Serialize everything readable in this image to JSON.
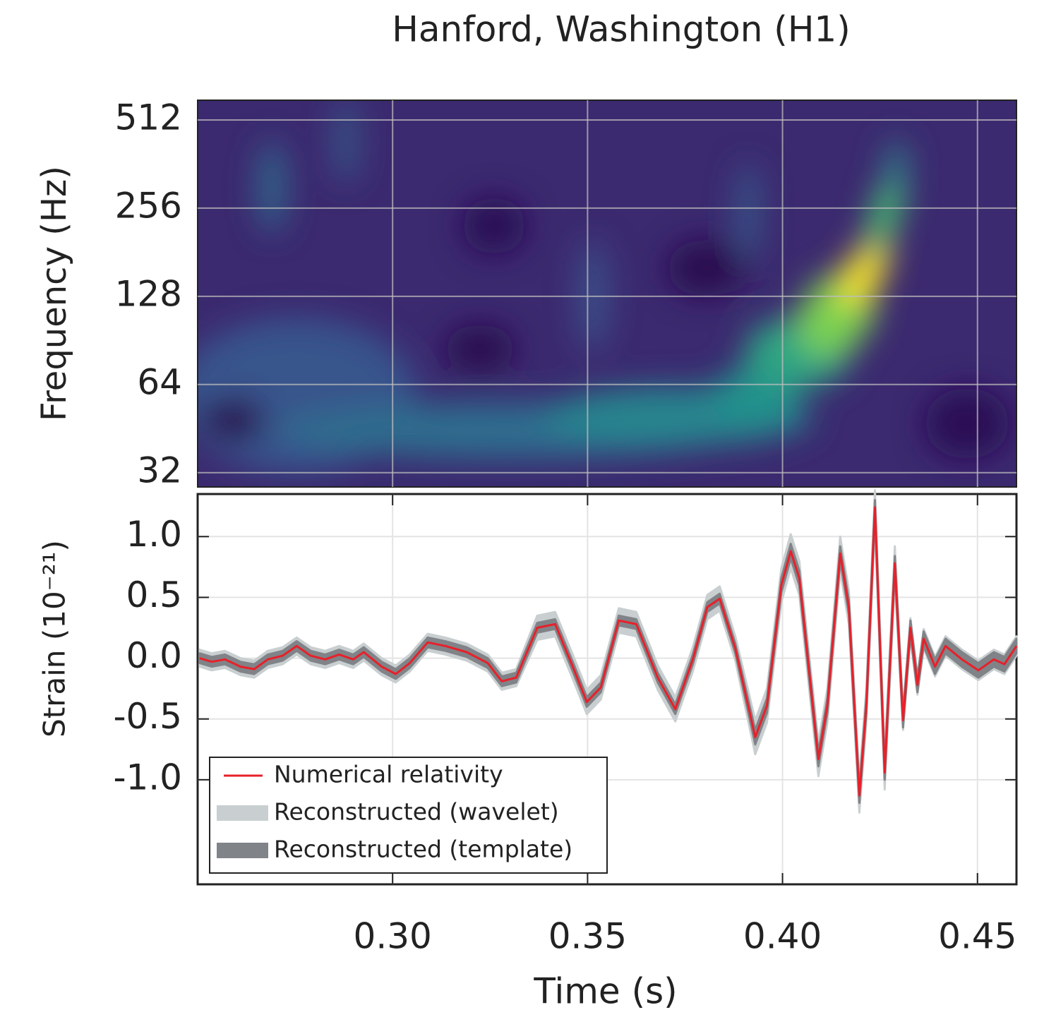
{
  "chart_data": [
    {
      "type": "spectrogram",
      "title": "Hanford, Washington (H1)",
      "ylabel": "Frequency (Hz)",
      "yscale": "log",
      "ylim": [
        28.6,
        598
      ],
      "yticks": [
        512,
        256,
        128,
        64,
        32
      ],
      "xlim": [
        0.25,
        0.46
      ],
      "xticks": [
        {
          "value": 0.3,
          "label": "0.30"
        },
        0.35,
        {
          "value": 0.4,
          "label": "0.40"
        },
        0.45
      ],
      "grid": true
    },
    {
      "type": "line",
      "xlabel": "Time (s)",
      "ylabel": "Strain (10⁻²¹)",
      "xlim": [
        0.25,
        0.46
      ],
      "xticks": [
        {
          "value": 0.3,
          "label": "0.30"
        },
        0.35,
        {
          "value": 0.4,
          "label": "0.40"
        },
        0.45
      ],
      "ylim": [
        -1.86,
        1.35
      ],
      "yticks": [
        {
          "value": 1,
          "label": "1.0"
        },
        0.5,
        {
          "value": 0,
          "label": "0.0"
        },
        -0.5,
        {
          "value": -1,
          "label": "-1.0"
        }
      ],
      "grid": true,
      "legend": "lower left",
      "x": [
        0.2505,
        0.2536,
        0.257,
        0.261,
        0.2645,
        0.268,
        0.2718,
        0.2754,
        0.279,
        0.2827,
        0.2863,
        0.2899,
        0.2926,
        0.2972,
        0.3008,
        0.3044,
        0.309,
        0.3135,
        0.319,
        0.3244,
        0.328,
        0.3317,
        0.3371,
        0.3417,
        0.3462,
        0.3498,
        0.3534,
        0.358,
        0.3625,
        0.368,
        0.3725,
        0.377,
        0.3807,
        0.3839,
        0.3879,
        0.393,
        0.396,
        0.3997,
        0.4021,
        0.4043,
        0.407,
        0.4092,
        0.4115,
        0.4148,
        0.417,
        0.4197,
        0.4215,
        0.4237,
        0.4262,
        0.4288,
        0.4309,
        0.4328,
        0.4346,
        0.4362,
        0.4391,
        0.4418,
        0.446,
        0.4502,
        0.4542,
        0.4569,
        0.46
      ],
      "series": [
        {
          "name": "Numerical relativity",
          "color": "#e8202a",
          "values": [
            0,
            -0.03,
            -0.01,
            -0.07,
            -0.09,
            -0.01,
            0.02,
            0.1,
            0.02,
            -0.01,
            0.03,
            -0.01,
            0.05,
            -0.07,
            -0.13,
            -0.04,
            0.13,
            0.1,
            0.05,
            -0.04,
            -0.19,
            -0.16,
            0.25,
            0.28,
            -0.07,
            -0.36,
            -0.24,
            0.31,
            0.28,
            -0.16,
            -0.42,
            -0.01,
            0.42,
            0.49,
            0.08,
            -0.65,
            -0.39,
            0.6,
            0.88,
            0.66,
            -0.16,
            -0.83,
            -0.39,
            0.86,
            0.42,
            -1.13,
            -0.39,
            1.24,
            -0.94,
            0.78,
            -0.51,
            0.25,
            -0.22,
            0.16,
            -0.07,
            0.1,
            -0.01,
            -0.1,
            -0.01,
            -0.05,
            0.1
          ]
        },
        {
          "name": "Reconstructed (wavelet)",
          "color": "#c9cfd0",
          "lower": [
            -0.07,
            -0.1,
            -0.08,
            -0.14,
            -0.16,
            -0.08,
            -0.05,
            0.03,
            -0.05,
            -0.08,
            -0.04,
            -0.08,
            -0.02,
            -0.14,
            -0.2,
            -0.11,
            0.06,
            0.03,
            -0.02,
            -0.11,
            -0.26,
            -0.23,
            0.15,
            0.18,
            -0.17,
            -0.46,
            -0.34,
            0.21,
            0.18,
            -0.26,
            -0.52,
            -0.11,
            0.32,
            0.39,
            -0.02,
            -0.79,
            -0.53,
            0.46,
            0.74,
            0.52,
            -0.3,
            -0.97,
            -0.53,
            0.72,
            0.28,
            -1.27,
            -0.53,
            1.1,
            -1.08,
            0.64,
            -0.59,
            0.17,
            -0.3,
            0.08,
            -0.15,
            0.02,
            -0.09,
            -0.18,
            -0.09,
            -0.13,
            0.02
          ],
          "upper": [
            0.07,
            0.04,
            0.06,
            0.0,
            -0.02,
            0.06,
            0.09,
            0.17,
            0.09,
            0.06,
            0.1,
            0.06,
            0.12,
            0.0,
            -0.06,
            0.03,
            0.2,
            0.17,
            0.12,
            0.03,
            -0.12,
            -0.09,
            0.35,
            0.38,
            0.03,
            -0.26,
            -0.14,
            0.41,
            0.38,
            -0.06,
            -0.32,
            0.09,
            0.52,
            0.59,
            0.18,
            -0.51,
            -0.25,
            0.74,
            1.02,
            0.8,
            -0.02,
            -0.69,
            -0.25,
            1.0,
            0.56,
            -0.99,
            -0.25,
            1.38,
            -0.8,
            0.92,
            -0.43,
            0.33,
            -0.14,
            0.24,
            0.01,
            0.18,
            0.07,
            -0.02,
            0.07,
            0.03,
            0.18
          ]
        },
        {
          "name": "Reconstructed (template)",
          "color": "#808387",
          "lower": [
            -0.04,
            -0.07,
            -0.05,
            -0.11,
            -0.13,
            -0.05,
            -0.02,
            0.06,
            -0.02,
            -0.05,
            -0.01,
            -0.05,
            0.01,
            -0.11,
            -0.17,
            -0.08,
            0.09,
            0.06,
            0.01,
            -0.08,
            -0.23,
            -0.2,
            0.21,
            0.24,
            -0.11,
            -0.4,
            -0.28,
            0.27,
            0.24,
            -0.2,
            -0.46,
            -0.05,
            0.38,
            0.45,
            0.04,
            -0.71,
            -0.45,
            0.54,
            0.82,
            0.6,
            -0.22,
            -0.89,
            -0.45,
            0.8,
            0.36,
            -1.19,
            -0.45,
            1.18,
            -1.0,
            0.72,
            -0.57,
            0.19,
            -0.28,
            0.1,
            -0.13,
            0.04,
            -0.07,
            -0.16,
            -0.07,
            -0.11,
            0.04
          ],
          "upper": [
            0.04,
            0.01,
            0.03,
            -0.03,
            -0.05,
            0.03,
            0.06,
            0.14,
            0.06,
            0.03,
            0.07,
            0.03,
            0.09,
            -0.03,
            -0.09,
            0.0,
            0.17,
            0.14,
            0.09,
            0.0,
            -0.15,
            -0.12,
            0.29,
            0.32,
            -0.03,
            -0.32,
            -0.2,
            0.35,
            0.32,
            -0.12,
            -0.38,
            0.03,
            0.46,
            0.53,
            0.12,
            -0.59,
            -0.33,
            0.66,
            0.94,
            0.72,
            -0.1,
            -0.77,
            -0.33,
            0.92,
            0.48,
            -1.07,
            -0.33,
            1.3,
            -0.88,
            0.84,
            -0.45,
            0.31,
            -0.16,
            0.22,
            -0.01,
            0.16,
            0.05,
            -0.04,
            0.05,
            0.01,
            0.16
          ]
        }
      ]
    }
  ]
}
